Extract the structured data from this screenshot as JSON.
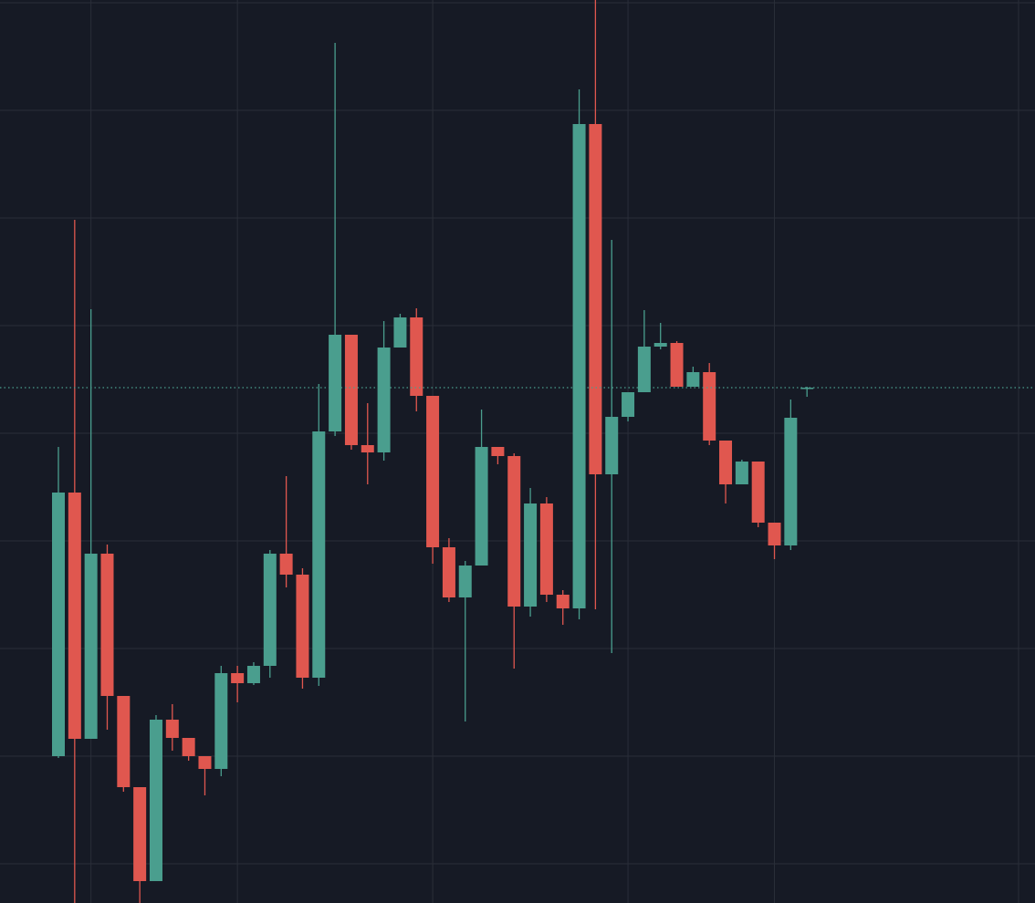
{
  "chart_data": {
    "type": "candlestick",
    "up_color": "#4a9e8e",
    "down_color": "#e0574f",
    "grid": true,
    "ylim": [
      -43,
      947
    ],
    "yticks": [
      0,
      118,
      236,
      354,
      472,
      590,
      708,
      826,
      944
    ],
    "xlim": [
      -3.6,
      60
    ],
    "xgrid": [
      2,
      11,
      23,
      35,
      44,
      59
    ],
    "last_price": 522,
    "open": [
      118,
      407,
      137,
      340,
      184,
      84,
      -19,
      158,
      138,
      118,
      104,
      209,
      198,
      217,
      340,
      317,
      204,
      474,
      580,
      459,
      451,
      566,
      599,
      513,
      347,
      292,
      327,
      457,
      447,
      282,
      395,
      295,
      280,
      811,
      427,
      490,
      517,
      567,
      571,
      523,
      539,
      464,
      416,
      441,
      374,
      349,
      521
    ],
    "high": [
      457,
      706,
      608,
      350,
      184,
      84,
      163,
      175,
      138,
      118,
      217,
      217,
      221,
      344,
      425,
      324,
      526,
      900,
      580,
      505,
      595,
      603,
      609,
      513,
      357,
      332,
      498,
      457,
      450,
      412,
      402,
      300,
      849,
      947,
      684,
      517,
      607,
      593,
      573,
      545,
      549,
      464,
      443,
      441,
      374,
      509,
      523
    ],
    "low": [
      116,
      -43,
      137,
      147,
      79,
      -43,
      -19,
      124,
      113,
      75,
      96,
      177,
      196,
      204,
      303,
      192,
      195,
      469,
      454,
      416,
      442,
      566,
      496,
      329,
      287,
      156,
      327,
      438,
      214,
      271,
      287,
      262,
      268,
      279,
      231,
      485,
      517,
      564,
      523,
      523,
      459,
      395,
      416,
      369,
      334,
      344,
      512
    ],
    "close": [
      407,
      137,
      340,
      184,
      84,
      -19,
      158,
      138,
      118,
      104,
      209,
      198,
      217,
      340,
      317,
      204,
      474,
      580,
      459,
      451,
      566,
      599,
      513,
      347,
      292,
      327,
      457,
      447,
      282,
      395,
      295,
      280,
      811,
      427,
      490,
      517,
      567,
      571,
      523,
      539,
      464,
      416,
      441,
      374,
      349,
      489,
      522
    ]
  }
}
